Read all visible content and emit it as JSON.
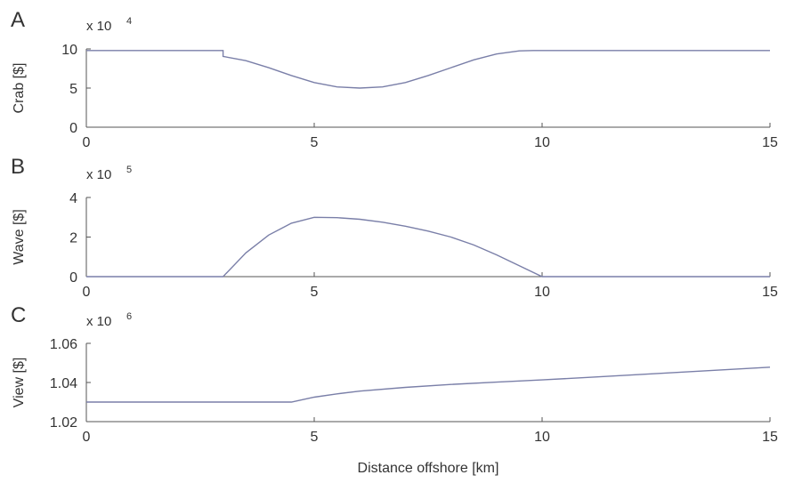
{
  "chart_data": [
    {
      "type": "line",
      "panel_label": "A",
      "ylabel": "Crab [$]",
      "multiplier": {
        "base": "x 10",
        "exponent": "4"
      },
      "xlim": [
        0,
        15
      ],
      "ylim": [
        0,
        10
      ],
      "xticks": [
        0,
        5,
        10,
        15
      ],
      "yticks": [
        0,
        5,
        10
      ],
      "ytick_labels": [
        "0",
        "5",
        "10"
      ],
      "series": [
        {
          "color": "#7a7fa8",
          "x": [
            0,
            3.0,
            3.0,
            3.5,
            4.0,
            4.5,
            5.0,
            5.5,
            6.0,
            6.5,
            7.0,
            7.5,
            8.0,
            8.5,
            9.0,
            9.5,
            9.8,
            10.0,
            15
          ],
          "y": [
            9.8,
            9.8,
            9.05,
            8.5,
            7.6,
            6.6,
            5.7,
            5.15,
            5.0,
            5.15,
            5.7,
            6.6,
            7.6,
            8.6,
            9.35,
            9.75,
            9.8,
            9.8,
            9.8
          ]
        }
      ]
    },
    {
      "type": "line",
      "panel_label": "B",
      "ylabel": "Wave [$]",
      "multiplier": {
        "base": "x 10",
        "exponent": "5"
      },
      "xlim": [
        0,
        15
      ],
      "ylim": [
        0,
        4
      ],
      "xticks": [
        0,
        5,
        10,
        15
      ],
      "yticks": [
        0,
        2,
        4
      ],
      "ytick_labels": [
        "0",
        "2",
        "4"
      ],
      "series": [
        {
          "color": "#7a7fa8",
          "x": [
            0,
            3.0,
            3.5,
            4.0,
            4.5,
            5.0,
            5.5,
            6.0,
            6.5,
            7.0,
            7.5,
            8.0,
            8.5,
            9.0,
            9.5,
            10.0,
            15
          ],
          "y": [
            0,
            0,
            1.2,
            2.1,
            2.7,
            3.0,
            2.98,
            2.9,
            2.75,
            2.55,
            2.3,
            2.0,
            1.6,
            1.1,
            0.55,
            0,
            0
          ]
        }
      ]
    },
    {
      "type": "line",
      "panel_label": "C",
      "ylabel": "View [$]",
      "multiplier": {
        "base": "x 10",
        "exponent": "6"
      },
      "xlabel": "Distance offshore [km]",
      "xlim": [
        0,
        15
      ],
      "ylim": [
        1.02,
        1.06
      ],
      "xticks": [
        0,
        5,
        10,
        15
      ],
      "yticks": [
        1.02,
        1.04,
        1.06
      ],
      "ytick_labels": [
        "1.02",
        "1.04",
        "1.06"
      ],
      "series": [
        {
          "color": "#7a7fa8",
          "x": [
            0,
            4.5,
            5.0,
            5.5,
            6.0,
            7.0,
            8.0,
            9.0,
            10.0,
            11.0,
            12.0,
            13.0,
            14.0,
            15.0
          ],
          "y": [
            1.03,
            1.03,
            1.0325,
            1.0342,
            1.0356,
            1.0375,
            1.039,
            1.0402,
            1.0413,
            1.0426,
            1.0439,
            1.0452,
            1.0465,
            1.0478
          ]
        }
      ]
    }
  ]
}
